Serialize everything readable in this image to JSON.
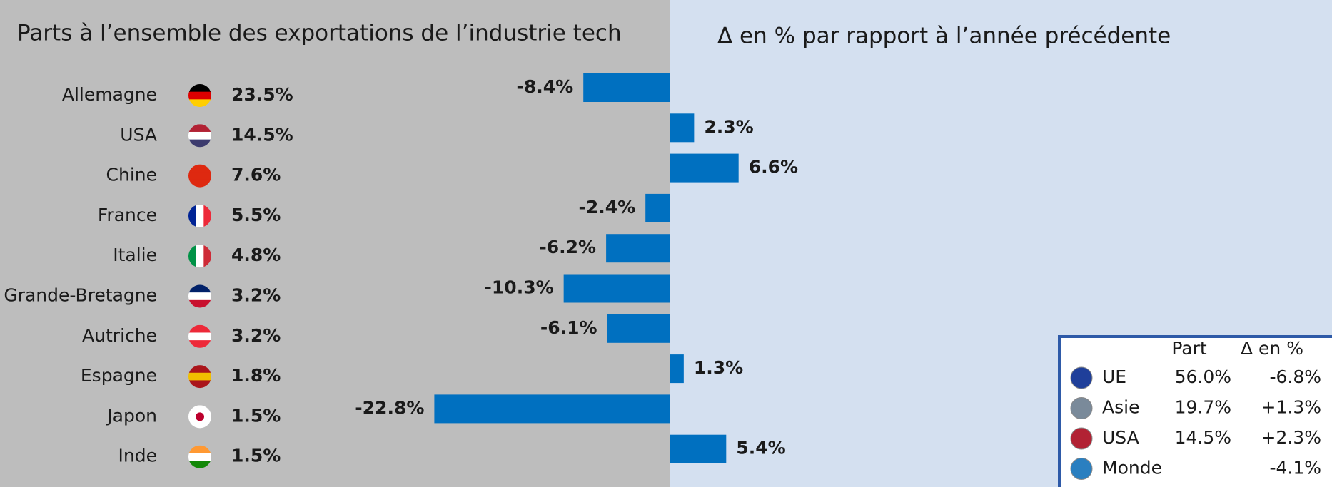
{
  "chart_data": {
    "type": "bar",
    "left_title": "Parts à l’ensemble des exportations de l’industrie tech",
    "title": "Δ en % par rapport à l’année précédente",
    "categories": [
      "Allemagne",
      "USA",
      "Chine",
      "France",
      "Italie",
      "Grande-Bretagne",
      "Autriche",
      "Espagne",
      "Japon",
      "Inde"
    ],
    "shares": [
      23.5,
      14.5,
      7.6,
      5.5,
      4.8,
      3.2,
      3.2,
      1.8,
      1.5,
      1.5
    ],
    "share_labels": [
      "23.5%",
      "14.5%",
      "7.6%",
      "5.5%",
      "4.8%",
      "3.2%",
      "3.2%",
      "1.8%",
      "1.5%",
      "1.5%"
    ],
    "values": [
      -8.4,
      2.3,
      6.6,
      -2.4,
      -6.2,
      -10.3,
      -6.1,
      1.3,
      -22.8,
      5.4
    ],
    "value_labels": [
      "-8.4%",
      "2.3%",
      "6.6%",
      "-2.4%",
      "-6.2%",
      "-10.3%",
      "-6.1%",
      "1.3%",
      "-22.8%",
      "5.4%"
    ],
    "color": "#0070c0",
    "summary": {
      "headers": [
        "Part",
        "Δ en %"
      ],
      "rows": [
        {
          "label": "UE",
          "part": 56.0,
          "part_label": "56.0%",
          "delta": -6.8,
          "delta_label": "-6.8%"
        },
        {
          "label": "Asie",
          "part": 19.7,
          "part_label": "19.7%",
          "delta": 1.3,
          "delta_label": "+1.3%"
        },
        {
          "label": "USA",
          "part": 14.5,
          "part_label": "14.5%",
          "delta": 2.3,
          "delta_label": "+2.3%"
        },
        {
          "label": "Monde",
          "delta": -4.1,
          "delta_label": "-4.1%"
        }
      ]
    }
  }
}
